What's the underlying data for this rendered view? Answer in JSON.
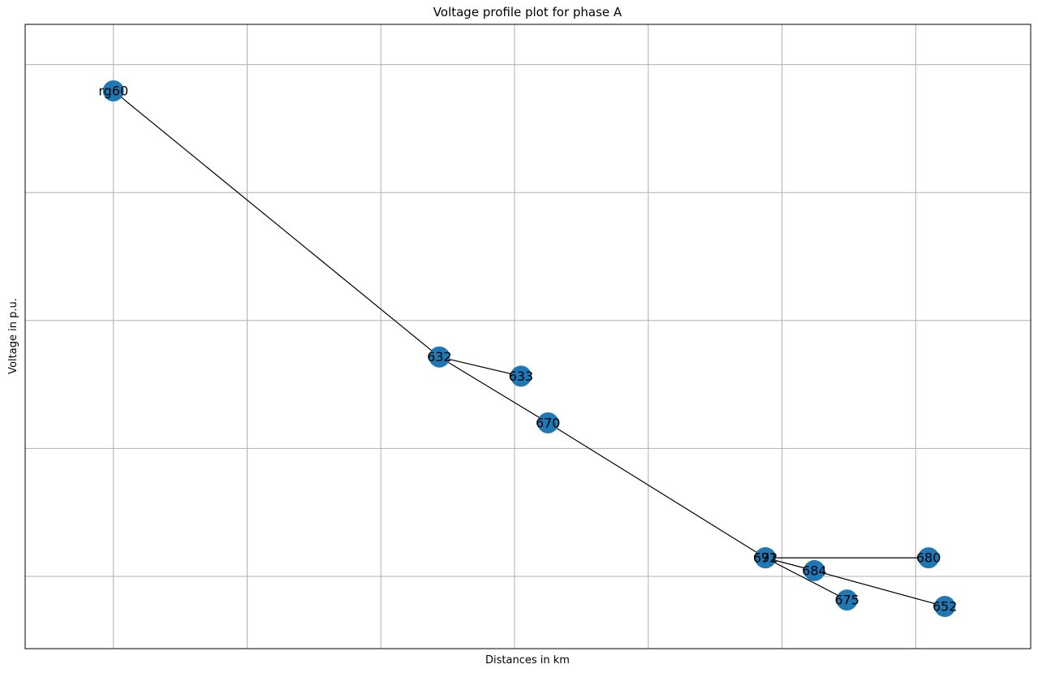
{
  "chart_data": {
    "type": "scatter",
    "title": "Voltage profile plot for phase A",
    "xlabel": "Distances in km",
    "ylabel": "Voltage in p.u.",
    "x_ticks": [
      0,
      0.5,
      1.0,
      1.5,
      2.0,
      2.5,
      3.0
    ],
    "y_ticks": [
      0.96,
      0.98,
      1.0,
      1.02,
      1.04
    ],
    "tick_labels_visible": false,
    "xlim": [
      -0.33,
      3.43
    ],
    "ylim": [
      0.9487,
      1.0463
    ],
    "grid": true,
    "marker_color": "#1f77b4",
    "edge_color": "#000000",
    "nodes": [
      {
        "name": "rg60",
        "x": 0.0,
        "y": 1.0359
      },
      {
        "name": "632",
        "x": 1.219,
        "y": 0.9943
      },
      {
        "name": "633",
        "x": 1.524,
        "y": 0.9913
      },
      {
        "name": "670",
        "x": 1.625,
        "y": 0.984
      },
      {
        "name": "671",
        "x": 2.438,
        "y": 0.9629
      },
      {
        "name": "692",
        "x": 2.438,
        "y": 0.9629
      },
      {
        "name": "684",
        "x": 2.621,
        "y": 0.9609
      },
      {
        "name": "680",
        "x": 3.048,
        "y": 0.9629
      },
      {
        "name": "675",
        "x": 2.743,
        "y": 0.9563
      },
      {
        "name": "652",
        "x": 3.109,
        "y": 0.9553
      }
    ],
    "edges": [
      [
        "rg60",
        "632"
      ],
      [
        "632",
        "633"
      ],
      [
        "632",
        "670"
      ],
      [
        "670",
        "671"
      ],
      [
        "671",
        "692"
      ],
      [
        "671",
        "684"
      ],
      [
        "671",
        "680"
      ],
      [
        "692",
        "675"
      ],
      [
        "684",
        "652"
      ]
    ]
  }
}
